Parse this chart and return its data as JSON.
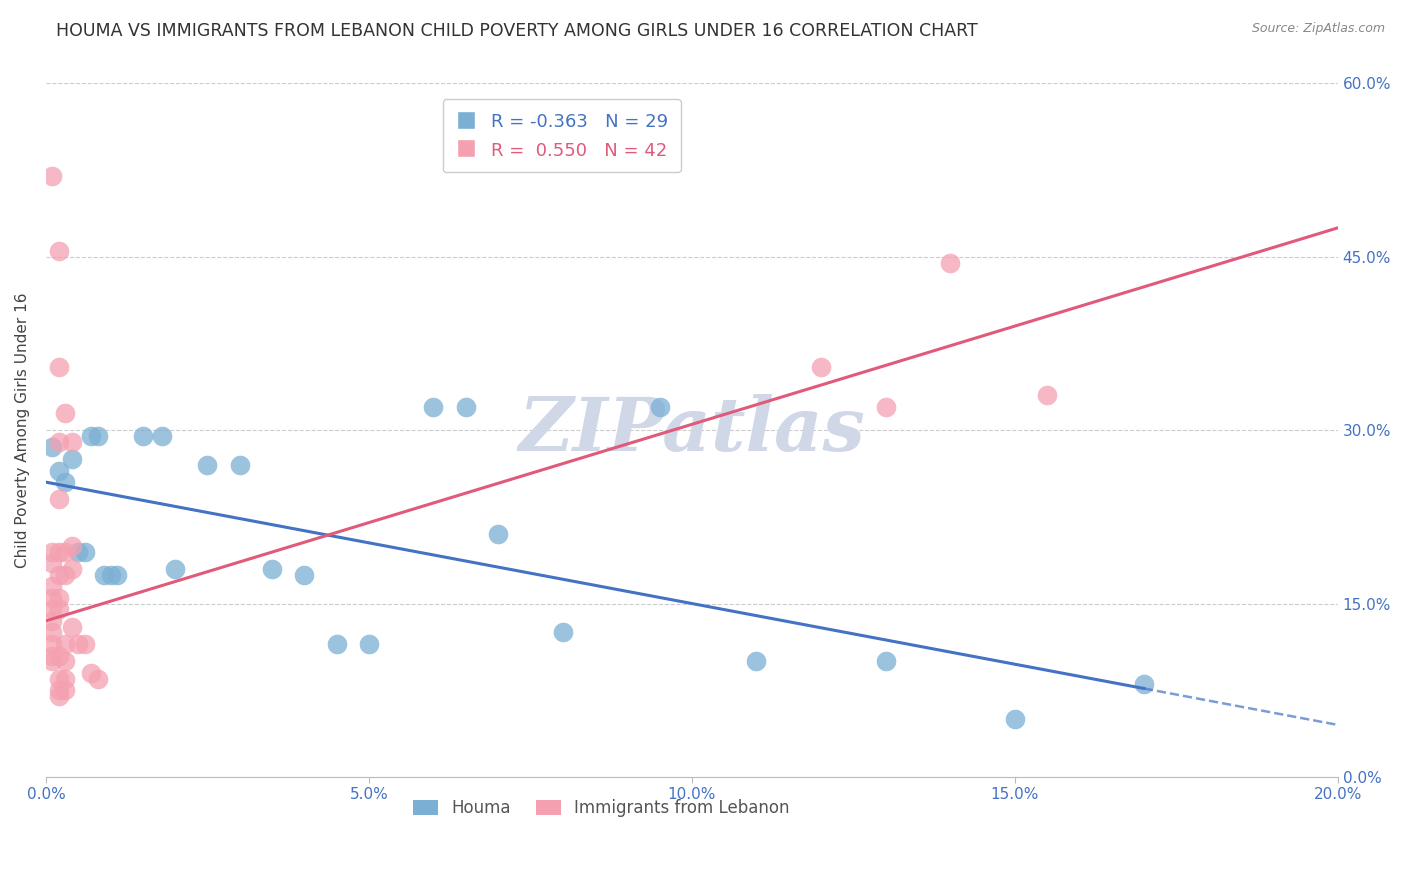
{
  "title": "HOUMA VS IMMIGRANTS FROM LEBANON CHILD POVERTY AMONG GIRLS UNDER 16 CORRELATION CHART",
  "source": "Source: ZipAtlas.com",
  "ylabel": "Child Poverty Among Girls Under 16",
  "xlim": [
    0.0,
    0.2
  ],
  "ylim": [
    0.0,
    0.6
  ],
  "yticks": [
    0.0,
    0.15,
    0.3,
    0.45,
    0.6
  ],
  "xticks": [
    0.0,
    0.05,
    0.1,
    0.15,
    0.2
  ],
  "houma_color": "#7bafd4",
  "lebanon_color": "#f4a0b0",
  "houma_R": -0.363,
  "houma_N": 29,
  "lebanon_R": 0.55,
  "lebanon_N": 42,
  "houma_scatter": [
    [
      0.001,
      0.285
    ],
    [
      0.002,
      0.265
    ],
    [
      0.003,
      0.255
    ],
    [
      0.004,
      0.275
    ],
    [
      0.005,
      0.195
    ],
    [
      0.006,
      0.195
    ],
    [
      0.007,
      0.295
    ],
    [
      0.008,
      0.295
    ],
    [
      0.009,
      0.175
    ],
    [
      0.01,
      0.175
    ],
    [
      0.011,
      0.175
    ],
    [
      0.015,
      0.295
    ],
    [
      0.018,
      0.295
    ],
    [
      0.02,
      0.18
    ],
    [
      0.025,
      0.27
    ],
    [
      0.03,
      0.27
    ],
    [
      0.035,
      0.18
    ],
    [
      0.04,
      0.175
    ],
    [
      0.045,
      0.115
    ],
    [
      0.05,
      0.115
    ],
    [
      0.06,
      0.32
    ],
    [
      0.065,
      0.32
    ],
    [
      0.07,
      0.21
    ],
    [
      0.08,
      0.125
    ],
    [
      0.095,
      0.32
    ],
    [
      0.11,
      0.1
    ],
    [
      0.13,
      0.1
    ],
    [
      0.15,
      0.05
    ],
    [
      0.17,
      0.08
    ]
  ],
  "lebanon_scatter": [
    [
      0.001,
      0.195
    ],
    [
      0.001,
      0.185
    ],
    [
      0.001,
      0.165
    ],
    [
      0.001,
      0.155
    ],
    [
      0.001,
      0.145
    ],
    [
      0.001,
      0.135
    ],
    [
      0.001,
      0.125
    ],
    [
      0.001,
      0.115
    ],
    [
      0.001,
      0.105
    ],
    [
      0.001,
      0.1
    ],
    [
      0.001,
      0.52
    ],
    [
      0.002,
      0.455
    ],
    [
      0.002,
      0.355
    ],
    [
      0.002,
      0.29
    ],
    [
      0.002,
      0.24
    ],
    [
      0.002,
      0.195
    ],
    [
      0.002,
      0.175
    ],
    [
      0.002,
      0.155
    ],
    [
      0.002,
      0.145
    ],
    [
      0.002,
      0.105
    ],
    [
      0.002,
      0.085
    ],
    [
      0.002,
      0.075
    ],
    [
      0.002,
      0.07
    ],
    [
      0.003,
      0.315
    ],
    [
      0.003,
      0.195
    ],
    [
      0.003,
      0.175
    ],
    [
      0.003,
      0.115
    ],
    [
      0.003,
      0.085
    ],
    [
      0.003,
      0.075
    ],
    [
      0.003,
      0.1
    ],
    [
      0.004,
      0.29
    ],
    [
      0.004,
      0.2
    ],
    [
      0.004,
      0.18
    ],
    [
      0.004,
      0.13
    ],
    [
      0.005,
      0.115
    ],
    [
      0.006,
      0.115
    ],
    [
      0.007,
      0.09
    ],
    [
      0.008,
      0.085
    ],
    [
      0.12,
      0.355
    ],
    [
      0.13,
      0.32
    ],
    [
      0.14,
      0.445
    ],
    [
      0.155,
      0.33
    ]
  ],
  "houma_line_color": "#4472c4",
  "lebanon_line_color": "#e05a7a",
  "houma_line_intercept": 0.255,
  "houma_line_slope": -1.05,
  "lebanon_line_intercept": 0.135,
  "lebanon_line_slope": 1.7,
  "background_color": "#ffffff",
  "grid_color": "#cccccc",
  "axis_label_color": "#4472c4",
  "watermark_text": "ZIPatlas",
  "watermark_color": "#d0d8e8"
}
